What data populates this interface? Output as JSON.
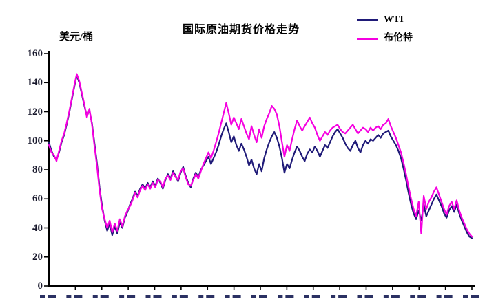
{
  "chart_data": {
    "type": "line",
    "title": "国际原油期货价格走势",
    "ylabel": "美元/桶",
    "ylim": [
      0,
      160
    ],
    "yticks": [
      0,
      20,
      40,
      60,
      80,
      100,
      120,
      140,
      160
    ],
    "grid": false,
    "legend_position": "top-right",
    "x_axis": {
      "tick_count": 17,
      "tick_labels_cut_off": true
    },
    "series": [
      {
        "name": "WTI",
        "color": "#1f1a78",
        "values": [
          99,
          93,
          89,
          87,
          92,
          99,
          104,
          111,
          119,
          128,
          137,
          145,
          140,
          132,
          124,
          117,
          121,
          112,
          98,
          84,
          68,
          55,
          45,
          38,
          43,
          35,
          41,
          36,
          44,
          40,
          47,
          51,
          56,
          60,
          65,
          62,
          67,
          70,
          67,
          71,
          68,
          72,
          69,
          74,
          71,
          67,
          73,
          77,
          74,
          79,
          76,
          72,
          78,
          82,
          76,
          71,
          68,
          74,
          78,
          75,
          80,
          83,
          86,
          89,
          84,
          88,
          92,
          97,
          103,
          108,
          112,
          106,
          99,
          103,
          97,
          93,
          98,
          94,
          89,
          83,
          87,
          81,
          77,
          84,
          79,
          88,
          94,
          99,
          103,
          106,
          102,
          96,
          88,
          78,
          84,
          81,
          87,
          92,
          96,
          93,
          89,
          86,
          91,
          94,
          92,
          96,
          93,
          89,
          93,
          97,
          95,
          99,
          103,
          106,
          108,
          105,
          102,
          98,
          95,
          93,
          97,
          100,
          95,
          92,
          97,
          100,
          98,
          101,
          100,
          102,
          104,
          102,
          105,
          106,
          107,
          103,
          100,
          97,
          93,
          88,
          81,
          73,
          64,
          56,
          50,
          46,
          52,
          45,
          56,
          48,
          52,
          56,
          60,
          63,
          59,
          55,
          50,
          47,
          52,
          55,
          51,
          56,
          50,
          45,
          41,
          37,
          34,
          33
        ]
      },
      {
        "name": "布伦特",
        "color": "#f500e0",
        "values": [
          97,
          92,
          90,
          86,
          93,
          100,
          105,
          112,
          120,
          129,
          138,
          146,
          141,
          133,
          125,
          116,
          122,
          111,
          96,
          82,
          66,
          53,
          46,
          40,
          45,
          37,
          43,
          38,
          46,
          41,
          48,
          52,
          55,
          59,
          64,
          61,
          66,
          69,
          66,
          70,
          67,
          71,
          68,
          73,
          72,
          68,
          74,
          76,
          73,
          78,
          75,
          73,
          79,
          81,
          75,
          70,
          69,
          73,
          77,
          74,
          79,
          84,
          88,
          92,
          88,
          93,
          99,
          105,
          112,
          119,
          126,
          119,
          111,
          116,
          112,
          108,
          115,
          110,
          105,
          101,
          110,
          104,
          99,
          108,
          102,
          110,
          115,
          119,
          124,
          122,
          118,
          110,
          99,
          89,
          97,
          93,
          101,
          108,
          114,
          110,
          107,
          110,
          113,
          116,
          112,
          109,
          104,
          100,
          103,
          106,
          104,
          107,
          109,
          110,
          111,
          108,
          106,
          105,
          107,
          109,
          111,
          108,
          105,
          107,
          109,
          108,
          106,
          109,
          107,
          109,
          110,
          108,
          111,
          112,
          115,
          110,
          106,
          102,
          97,
          92,
          85,
          77,
          68,
          60,
          53,
          48,
          58,
          36,
          62,
          53,
          58,
          61,
          65,
          68,
          63,
          58,
          53,
          49,
          55,
          58,
          53,
          59,
          52,
          47,
          43,
          39,
          36,
          34
        ]
      }
    ]
  }
}
